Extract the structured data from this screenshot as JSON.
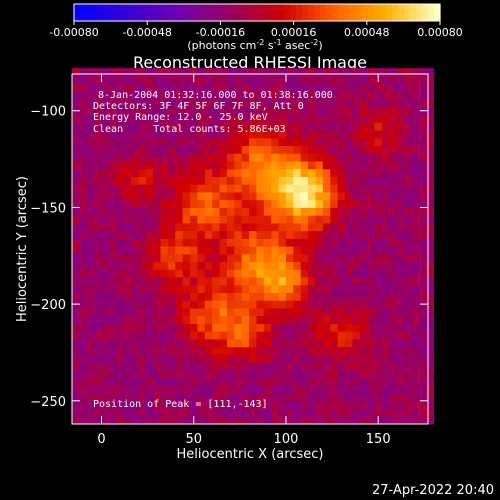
{
  "chart_data": {
    "type": "heatmap",
    "title": "Reconstructed RHESSI Image",
    "xlabel": "Heliocentric X (arcsec)",
    "ylabel": "Heliocentric Y (arcsec)",
    "xlim": [
      -16,
      177
    ],
    "ylim": [
      -262,
      -81
    ],
    "x_ticks": [
      0,
      50,
      100,
      150
    ],
    "y_ticks": [
      -100,
      -150,
      -200,
      -250
    ],
    "annotations": [
      "8-Jan-2004 01:32:16.000 to 01:38:16.000",
      "Detectors: 3F 4F 5F 6F 7F 8F, Att 0",
      "Energy Range: 12.0 - 25.0 keV",
      "Clean     Total counts: 5.86E+03"
    ],
    "peak_label": "Position of Peak = [111,-143]",
    "peak": [
      111,
      -143
    ],
    "colorbar": {
      "range": [
        -0.0008,
        0.0008
      ],
      "ticks": [
        "-0.00080",
        "-0.00048",
        "-0.00016",
        "0.00016",
        "0.00048",
        "0.00080"
      ],
      "unit_label": "(photons cm",
      "unit_sup1": "-2",
      "unit_mid": " s",
      "unit_sup2": "-1",
      "unit_mid2": " asec",
      "unit_sup3": "-2",
      "unit_end": ")"
    },
    "colormap": [
      "#0000ff",
      "#3a00d8",
      "#7000b0",
      "#9a0060",
      "#d00000",
      "#ff6000",
      "#ffb000",
      "#ffffc0"
    ],
    "sources": [
      {
        "x": 111,
        "y": -143,
        "sigma": 12,
        "amp": 0.0008
      },
      {
        "x": 88,
        "y": -130,
        "sigma": 14,
        "amp": 0.00055
      },
      {
        "x": 55,
        "y": -148,
        "sigma": 12,
        "amp": 0.00045
      },
      {
        "x": 40,
        "y": -175,
        "sigma": 10,
        "amp": 0.00038
      },
      {
        "x": 85,
        "y": -178,
        "sigma": 14,
        "amp": 0.0005
      },
      {
        "x": 100,
        "y": -188,
        "sigma": 10,
        "amp": 0.0004
      },
      {
        "x": 60,
        "y": -205,
        "sigma": 12,
        "amp": 0.0004
      },
      {
        "x": 78,
        "y": -215,
        "sigma": 10,
        "amp": 0.00035
      },
      {
        "x": 130,
        "y": -215,
        "sigma": 10,
        "amp": 0.0003
      },
      {
        "x": 20,
        "y": -135,
        "sigma": 9,
        "amp": 0.00025
      },
      {
        "x": 150,
        "y": -110,
        "sigma": 9,
        "amp": 0.00025
      }
    ],
    "background": -0.00012
  },
  "footer": {
    "timestamp": "27-Apr-2022 20:40"
  }
}
